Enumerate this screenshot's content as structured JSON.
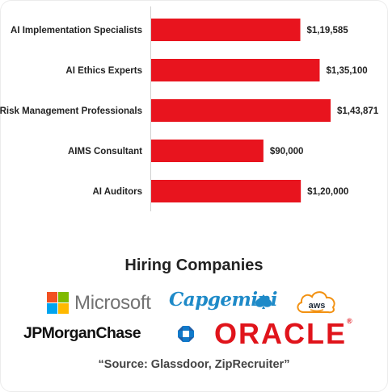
{
  "chart_data": {
    "type": "bar",
    "orientation": "horizontal",
    "categories": [
      "AI Implementation Specialists",
      "AI Ethics Experts",
      "Risk Management Professionals",
      "AIMS Consultant",
      "AI Auditors"
    ],
    "values": [
      119585,
      135100,
      143871,
      90000,
      120000
    ],
    "value_labels": [
      "$1,19,585",
      "$1,35,100",
      "$1,43,871",
      "$90,000",
      "$1,20,000"
    ],
    "bar_color": "#e8141e",
    "xlim": [
      0,
      150000
    ],
    "grid": false,
    "legend": "none"
  },
  "hiring": {
    "title": "Hiring Companies",
    "logos": [
      "microsoft-logo",
      "capgemini-logo",
      "aws-logo",
      "jpmorganchase-logo",
      "oracle-logo"
    ],
    "microsoft": "Microsoft",
    "capgemini": "Capgemini",
    "aws": "aws",
    "jpmorgan": "JPMorganChase",
    "oracle": "ORACLE"
  },
  "source": "“Source: Glassdoor, ZipRecruiter”",
  "colors": {
    "bar": "#e8141e",
    "microsoft_red": "#f25022",
    "microsoft_green": "#7fba00",
    "microsoft_blue": "#00a4ef",
    "microsoft_yellow": "#ffb900",
    "capgemini_blue": "#1e8ac8",
    "aws_orange": "#f29111",
    "chase_blue": "#117aca",
    "oracle_red": "#e0141b"
  }
}
